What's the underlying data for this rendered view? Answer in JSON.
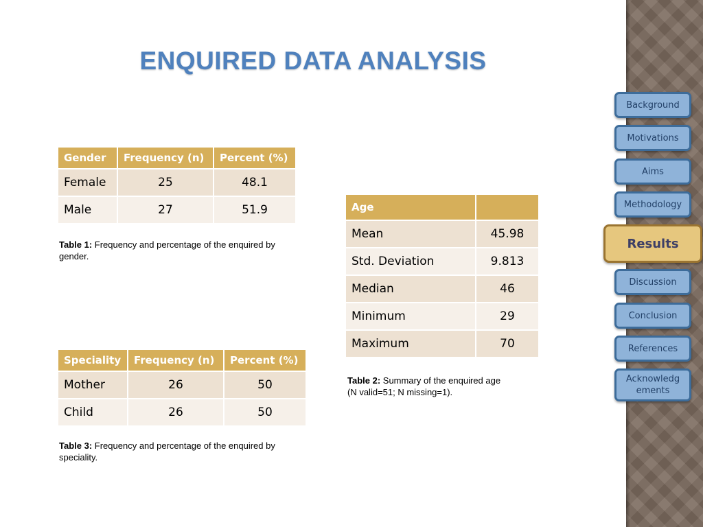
{
  "title": "ENQUIRED DATA ANALYSIS",
  "table1": {
    "headers": [
      "Gender",
      "Frequency (n)",
      "Percent (%)"
    ],
    "rows": [
      [
        "Female",
        "25",
        "48.1"
      ],
      [
        "Male",
        "27",
        "51.9"
      ]
    ],
    "caption_label": "Table 1:",
    "caption_text": " Frequency and percentage of the enquired by gender."
  },
  "table2": {
    "headers": [
      "Age",
      ""
    ],
    "rows": [
      [
        "Mean",
        "45.98"
      ],
      [
        "Std. Deviation",
        "9.813"
      ],
      [
        "Median",
        "46"
      ],
      [
        "Minimum",
        "29"
      ],
      [
        "Maximum",
        "70"
      ]
    ],
    "caption_label": "Table 2:",
    "caption_text": " Summary of the enquired age",
    "caption_line2": "(N valid=51; N missing=1)."
  },
  "table3": {
    "headers": [
      "Speciality",
      "Frequency (n)",
      "Percent (%)"
    ],
    "rows": [
      [
        "Mother",
        "26",
        "50"
      ],
      [
        "Child",
        "26",
        "50"
      ]
    ],
    "caption_label": "Table 3:",
    "caption_text": " Frequency and percentage of the enquired by speciality."
  },
  "nav": {
    "items": [
      "Background",
      "Motivations",
      "Aims",
      "Methodology",
      "Results",
      "Discussion",
      "Conclusion",
      "References",
      "Acknowledg ements"
    ],
    "active": "Results"
  },
  "colors": {
    "title": "#4f81bd",
    "table_header": "#d6af5a",
    "row_odd": "#ede1d2",
    "row_even": "#f6f0e9",
    "nav_button": "#8fb3d9",
    "nav_active": "#e6c77e",
    "sidebar": "#7b6a5e"
  }
}
